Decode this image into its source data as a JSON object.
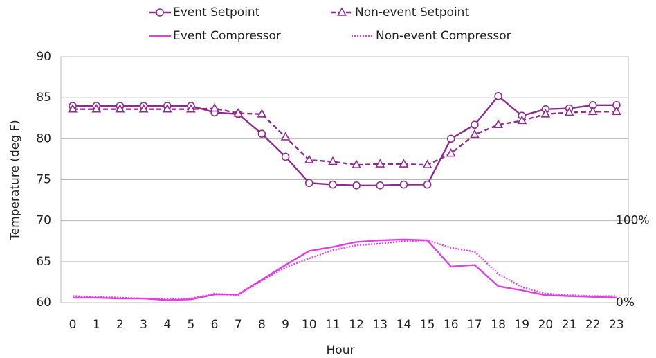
{
  "chart_data": {
    "type": "line",
    "x_label": "Hour",
    "y_label": "Temperature (deg F)",
    "categories": [
      "0",
      "1",
      "2",
      "3",
      "4",
      "5",
      "6",
      "7",
      "8",
      "9",
      "10",
      "11",
      "12",
      "13",
      "14",
      "15",
      "16",
      "17",
      "18",
      "19",
      "20",
      "21",
      "22",
      "23"
    ],
    "ylim": [
      60,
      90
    ],
    "yticks": [
      60,
      65,
      70,
      75,
      80,
      85,
      90
    ],
    "y2lim": [
      0,
      300
    ],
    "y2ticks": [
      {
        "value": 0,
        "label": "0%"
      },
      {
        "value": 100,
        "label": "100%"
      }
    ],
    "grid": true,
    "legend": "top",
    "series": [
      {
        "name": "Event Setpoint",
        "color": "#8e2c8e",
        "style": "solid",
        "marker": "circle",
        "values": [
          84,
          84,
          84,
          84,
          84,
          84,
          83.2,
          83,
          80.6,
          77.8,
          74.6,
          74.4,
          74.3,
          74.3,
          74.4,
          74.4,
          80,
          81.7,
          85.2,
          82.8,
          83.6,
          83.7,
          84.1,
          84.1
        ]
      },
      {
        "name": "Non-event Setpoint",
        "color": "#8e2c8e",
        "style": "dashed",
        "marker": "triangle",
        "values": [
          83.6,
          83.6,
          83.6,
          83.6,
          83.6,
          83.6,
          83.7,
          83.1,
          83,
          80.2,
          77.4,
          77.2,
          76.8,
          76.9,
          76.9,
          76.8,
          78.2,
          80.5,
          81.7,
          82.2,
          83,
          83.2,
          83.3,
          83.3
        ]
      },
      {
        "name": "Event Compressor",
        "color": "#e040e0",
        "style": "solid",
        "marker": "none",
        "axis": "y2",
        "values": [
          6,
          6,
          5,
          5,
          3,
          4,
          10,
          10,
          28,
          46,
          63,
          68,
          74,
          76,
          77,
          76,
          44,
          46,
          20,
          15,
          9,
          8,
          7,
          6
        ]
      },
      {
        "name": "Non-event Compressor",
        "color": "#e040e0",
        "style": "dotted",
        "marker": "none",
        "axis": "y2",
        "values": [
          8,
          7,
          6,
          5,
          5,
          5,
          11,
          9,
          27,
          43,
          54,
          64,
          70,
          72,
          75,
          76,
          67,
          62,
          35,
          19,
          11,
          9,
          8,
          8
        ]
      }
    ]
  }
}
